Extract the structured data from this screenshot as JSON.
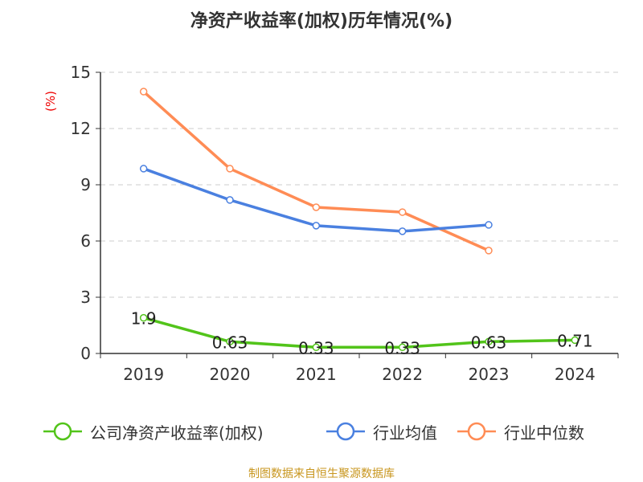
{
  "chart_data": {
    "type": "line",
    "title": "净资产收益率(加权)历年情况(%)",
    "ylabel": "(%)",
    "categories": [
      "2019",
      "2020",
      "2021",
      "2022",
      "2023",
      "2024"
    ],
    "ylim": [
      0,
      15
    ],
    "yticks": [
      0,
      3,
      6,
      9,
      12,
      15
    ],
    "grid": true,
    "legend_position": "bottom",
    "series": [
      {
        "name": "公司净资产收益率(加权)",
        "color": "#52c41a",
        "values": [
          1.9,
          0.63,
          0.33,
          0.33,
          0.63,
          0.71
        ],
        "labels": [
          "1.9",
          "0.63",
          "0.33",
          "0.33",
          "0.63",
          "0.71"
        ]
      },
      {
        "name": "行业均值",
        "color": "#4a80e0",
        "values": [
          9.86,
          8.19,
          6.82,
          6.52,
          6.86,
          null
        ]
      },
      {
        "name": "行业中位数",
        "color": "#ff8c55",
        "values": [
          13.97,
          9.86,
          7.8,
          7.54,
          5.49,
          null
        ]
      }
    ]
  },
  "source": "制图数据来自恒生聚源数据库"
}
